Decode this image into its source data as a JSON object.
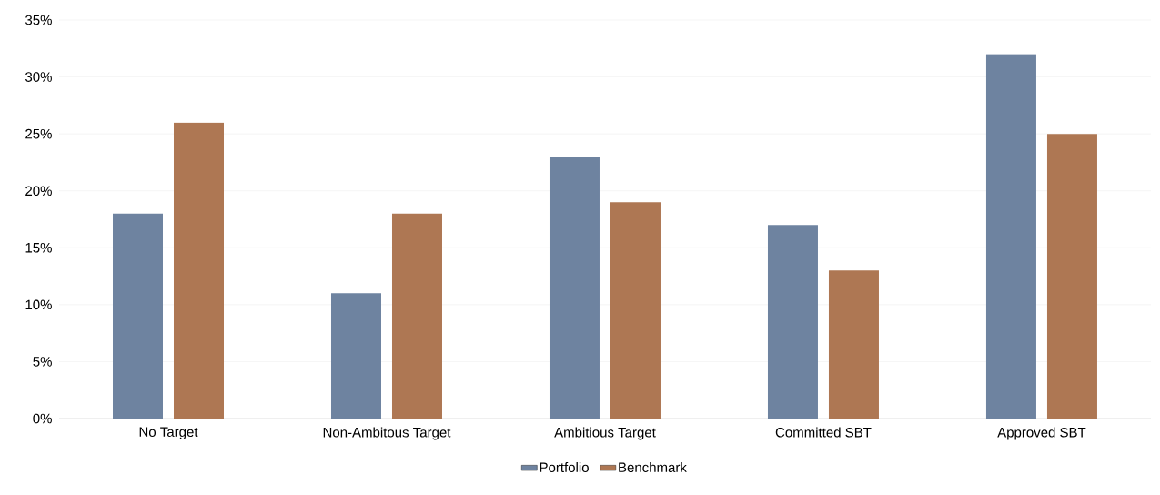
{
  "chart_data": {
    "type": "bar",
    "categories": [
      "No Target",
      "Non-Ambitous Target",
      "Ambitious Target",
      "Committed SBT",
      "Approved SBT"
    ],
    "series": [
      {
        "name": "Portfolio",
        "color": "#6e83a0",
        "values": [
          18,
          11,
          23,
          17,
          32
        ]
      },
      {
        "name": "Benchmark",
        "color": "#ae7753",
        "values": [
          26,
          18,
          19,
          13,
          25
        ]
      }
    ],
    "ylim": [
      0,
      35
    ],
    "yticks": [
      {
        "value": 0,
        "label": "0%"
      },
      {
        "value": 5,
        "label": "5%"
      },
      {
        "value": 10,
        "label": "10%"
      },
      {
        "value": 15,
        "label": "15%"
      },
      {
        "value": 20,
        "label": "20%"
      },
      {
        "value": 25,
        "label": "25%"
      },
      {
        "value": 30,
        "label": "30%"
      },
      {
        "value": 35,
        "label": "35%"
      }
    ],
    "grid": "y",
    "legend": "bottom"
  }
}
